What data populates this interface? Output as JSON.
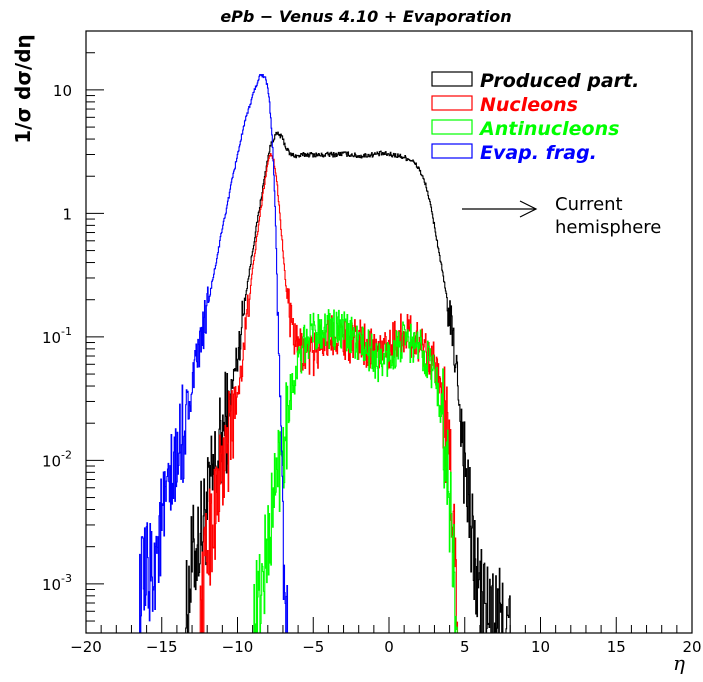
{
  "chart_data": {
    "type": "line",
    "title": "ePb − Venus 4.10 + Evaporation",
    "xlabel": "η",
    "ylabel": "1/σ dσ/dη",
    "xlim": [
      -20,
      20
    ],
    "ylim": [
      0.0004,
      30
    ],
    "yscale": "log",
    "grid": false,
    "legend_position": "top-right",
    "x_ticks": [
      -20,
      -15,
      -10,
      -5,
      0,
      5,
      10,
      15,
      20
    ],
    "x_tick_labels": [
      "−20",
      "−15",
      "−10",
      "−5",
      "0",
      "5",
      "10",
      "15",
      "20"
    ],
    "y_ticks": [
      {
        "value": 10,
        "base": "10",
        "exp": ""
      },
      {
        "value": 1,
        "base": "1",
        "exp": ""
      },
      {
        "value": 0.1,
        "base": "10",
        "exp": "-1"
      },
      {
        "value": 0.01,
        "base": "10",
        "exp": "-2"
      },
      {
        "value": 0.001,
        "base": "10",
        "exp": "-3"
      }
    ],
    "annotation": {
      "line1": "Current",
      "line2": "hemisphere"
    },
    "series": [
      {
        "name": "Produced part.",
        "color": "#000000",
        "x": [
          -13.5,
          -13,
          -12.5,
          -12,
          -11.5,
          -11,
          -10.5,
          -10,
          -9.5,
          -9,
          -8.5,
          -8.2,
          -8,
          -7.8,
          -7.6,
          -7.4,
          -7.2,
          -7,
          -6.8,
          -6.5,
          -6,
          -5.5,
          -5,
          -4.5,
          -4,
          -3.5,
          -3,
          -2.5,
          -2,
          -1.5,
          -1,
          -0.5,
          0,
          0.5,
          1,
          1.5,
          2,
          2.5,
          3,
          3.5,
          4,
          4.5,
          5,
          5.5,
          6,
          6.5,
          7,
          7.5,
          8
        ],
        "y": [
          0.0004,
          0.0015,
          0.0025,
          0.004,
          0.008,
          0.015,
          0.03,
          0.07,
          0.2,
          0.5,
          1.2,
          2.0,
          2.8,
          3.6,
          4.1,
          4.4,
          4.3,
          4.0,
          3.4,
          3.0,
          2.9,
          3.0,
          3.0,
          2.95,
          3.0,
          3.0,
          3.05,
          3.0,
          2.9,
          2.95,
          3.0,
          3.05,
          3.0,
          2.95,
          2.85,
          2.7,
          2.3,
          1.6,
          0.8,
          0.35,
          0.15,
          0.05,
          0.01,
          0.002,
          0.0008,
          0.0006,
          0.0005,
          0.0005,
          0.0004
        ]
      },
      {
        "name": "Nucleons",
        "color": "#ff0000",
        "x": [
          -12.5,
          -12,
          -11.5,
          -11,
          -10.5,
          -10,
          -9.5,
          -9,
          -8.5,
          -8.2,
          -8,
          -7.8,
          -7.6,
          -7.4,
          -7.2,
          -7,
          -6.8,
          -6.5,
          -6.2,
          -6,
          -5.5,
          -5,
          -4.5,
          -4,
          -3.5,
          -3,
          -2.5,
          -2,
          -1.5,
          -1,
          -0.5,
          0,
          0.5,
          1,
          1.5,
          2,
          2.5,
          3,
          3.5,
          4,
          4.3,
          4.6
        ],
        "y": [
          0.0004,
          0.002,
          0.004,
          0.008,
          0.015,
          0.035,
          0.1,
          0.35,
          1.0,
          1.8,
          2.6,
          3.1,
          2.7,
          1.8,
          1.0,
          0.5,
          0.25,
          0.13,
          0.09,
          0.08,
          0.075,
          0.07,
          0.09,
          0.1,
          0.11,
          0.1,
          0.09,
          0.095,
          0.085,
          0.08,
          0.075,
          0.08,
          0.1,
          0.11,
          0.1,
          0.09,
          0.08,
          0.06,
          0.03,
          0.01,
          0.002,
          0.0004
        ]
      },
      {
        "name": "Antinucleons",
        "color": "#00ff00",
        "x": [
          -9,
          -8.5,
          -8,
          -7.5,
          -7,
          -6.5,
          -6,
          -5.5,
          -5,
          -4.5,
          -4,
          -3.5,
          -3,
          -2.5,
          -2,
          -1.5,
          -1,
          -0.5,
          0,
          0.5,
          1,
          1.5,
          2,
          2.5,
          3,
          3.5,
          4,
          4.5
        ],
        "y": [
          0.0004,
          0.0008,
          0.002,
          0.006,
          0.015,
          0.035,
          0.06,
          0.09,
          0.11,
          0.12,
          0.12,
          0.11,
          0.11,
          0.1,
          0.09,
          0.08,
          0.07,
          0.06,
          0.07,
          0.08,
          0.09,
          0.09,
          0.08,
          0.07,
          0.05,
          0.025,
          0.005,
          0.0004
        ]
      },
      {
        "name": "Evap. frag.",
        "color": "#0000ff",
        "x": [
          -16.5,
          -15.5,
          -15,
          -14.5,
          -14,
          -13.5,
          -13,
          -12.5,
          -12,
          -11.5,
          -11,
          -10.5,
          -10,
          -9.5,
          -9,
          -8.7,
          -8.5,
          -8.3,
          -8.1,
          -7.9,
          -7.7,
          -7.5,
          -7.3,
          -7.1,
          -6.9,
          -6.7
        ],
        "y": [
          0.0008,
          0.0015,
          0.003,
          0.005,
          0.009,
          0.02,
          0.04,
          0.08,
          0.17,
          0.35,
          0.75,
          1.5,
          3.0,
          5.5,
          9.0,
          11.5,
          13.0,
          13.3,
          12.0,
          8.5,
          4.0,
          1.0,
          0.1,
          0.01,
          0.001,
          0.0004
        ]
      }
    ]
  }
}
